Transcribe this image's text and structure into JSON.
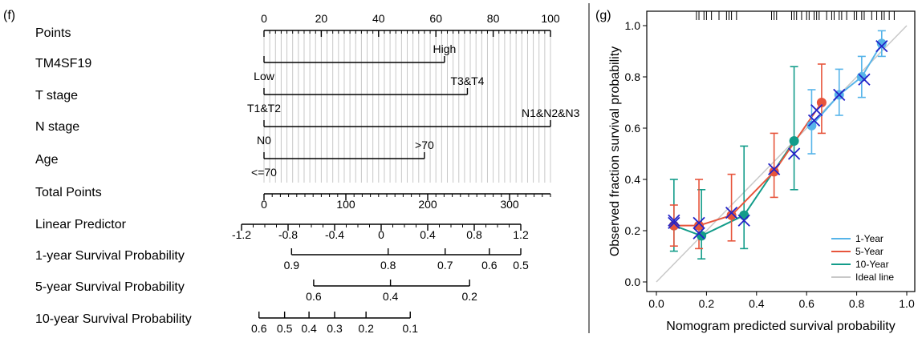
{
  "panel_f_label": "(f)",
  "panel_g_label": "(g)",
  "chart_data": [
    {
      "type": "nomogram",
      "rows": [
        {
          "label": "Points",
          "kind": "scale",
          "min": 0,
          "max": 100,
          "major": [
            0,
            20,
            40,
            60,
            80,
            100
          ]
        },
        {
          "label": "TM4SF19",
          "kind": "factor",
          "levels": [
            {
              "text": "Low",
              "points": 0
            },
            {
              "text": "High",
              "points": 63
            }
          ]
        },
        {
          "label": "T stage",
          "kind": "factor",
          "levels": [
            {
              "text": "T1&T2",
              "points": 0
            },
            {
              "text": "T3&T4",
              "points": 71
            }
          ]
        },
        {
          "label": "N stage",
          "kind": "factor",
          "levels": [
            {
              "text": "N0",
              "points": 0
            },
            {
              "text": "N1&N2&N3",
              "points": 100
            }
          ]
        },
        {
          "label": "Age",
          "kind": "factor",
          "levels": [
            {
              "text": "<=70",
              "points": 0
            },
            {
              "text": ">70",
              "points": 56
            }
          ]
        },
        {
          "label": "Total Points",
          "kind": "scale",
          "min": 0,
          "max": 350,
          "major": [
            0,
            100,
            200,
            300
          ]
        },
        {
          "label": "Linear Predictor",
          "kind": "scale",
          "min": -1.2,
          "max": 1.2,
          "major": [
            -1.2,
            -0.8,
            -0.4,
            0,
            0.4,
            0.8,
            1.2
          ],
          "major_text": [
            "-1.2",
            "-0.8",
            "-0.4",
            "0",
            "0.4",
            "0.8",
            "1.2"
          ]
        },
        {
          "label": "1-year Survival Probability",
          "kind": "prob",
          "ticks": [
            {
              "text": "0.9",
              "lp": -0.77
            },
            {
              "text": "0.8",
              "lp": 0.06
            },
            {
              "text": "0.7",
              "lp": 0.55
            },
            {
              "text": "0.6",
              "lp": 0.93
            },
            {
              "text": "0.5",
              "lp": 1.2
            }
          ]
        },
        {
          "label": "5-year Survival Probability",
          "kind": "prob",
          "ticks": [
            {
              "text": "0.6",
              "lp": -0.58
            },
            {
              "text": "0.4",
              "lp": 0.08
            },
            {
              "text": "0.2",
              "lp": 0.76
            }
          ]
        },
        {
          "label": "10-year Survival Probability",
          "kind": "prob",
          "ticks": [
            {
              "text": "0.6",
              "lp": -1.05
            },
            {
              "text": "0.5",
              "lp": -0.83
            },
            {
              "text": "0.4",
              "lp": -0.62
            },
            {
              "text": "0.3",
              "lp": -0.4
            },
            {
              "text": "0.2",
              "lp": -0.13
            },
            {
              "text": "0.1",
              "lp": 0.25
            }
          ]
        }
      ]
    },
    {
      "type": "line",
      "xlabel": "Nomogram predicted survival probability",
      "ylabel": "Observed fraction survival probability",
      "xlim": [
        0,
        1.0
      ],
      "ylim": [
        0,
        1.0
      ],
      "xticks": [
        "0.0",
        "0.2",
        "0.4",
        "0.6",
        "0.8",
        "1.0"
      ],
      "yticks": [
        "0.0",
        "0.2",
        "0.4",
        "0.6",
        "0.8",
        "1.0"
      ],
      "legend_position": "bottom-right",
      "rug": [
        0.16,
        0.17,
        0.19,
        0.2,
        0.22,
        0.25,
        0.28,
        0.29,
        0.3,
        0.32,
        0.46,
        0.47,
        0.48,
        0.54,
        0.55,
        0.56,
        0.58,
        0.6,
        0.61,
        0.63,
        0.64,
        0.65,
        0.68,
        0.7,
        0.71,
        0.73,
        0.74,
        0.76,
        0.79,
        0.8,
        0.82,
        0.83,
        0.86,
        0.88,
        0.9,
        0.91,
        0.93,
        0.95
      ],
      "series": [
        {
          "name": "1-Year",
          "color": "#56B4E9",
          "points": [
            {
              "x": 0.62,
              "y": 0.61,
              "lo": 0.5,
              "hi": 0.75
            },
            {
              "x": 0.73,
              "y": 0.73,
              "lo": 0.65,
              "hi": 0.83
            },
            {
              "x": 0.82,
              "y": 0.8,
              "lo": 0.72,
              "hi": 0.88
            },
            {
              "x": 0.9,
              "y": 0.93,
              "lo": 0.88,
              "hi": 0.98
            }
          ],
          "x_marks": [
            {
              "x": 0.64,
              "y": 0.67
            },
            {
              "x": 0.73,
              "y": 0.73
            },
            {
              "x": 0.83,
              "y": 0.79
            },
            {
              "x": 0.9,
              "y": 0.92
            }
          ]
        },
        {
          "name": "5-Year",
          "color": "#E7553C",
          "points": [
            {
              "x": 0.07,
              "y": 0.22,
              "lo": 0.14,
              "hi": 0.3
            },
            {
              "x": 0.17,
              "y": 0.22,
              "lo": 0.13,
              "hi": 0.4
            },
            {
              "x": 0.3,
              "y": 0.26,
              "lo": 0.16,
              "hi": 0.42
            },
            {
              "x": 0.47,
              "y": 0.43,
              "lo": 0.33,
              "hi": 0.58
            },
            {
              "x": 0.66,
              "y": 0.7,
              "lo": 0.58,
              "hi": 0.85
            }
          ],
          "x_marks": [
            {
              "x": 0.07,
              "y": 0.24
            },
            {
              "x": 0.17,
              "y": 0.23
            },
            {
              "x": 0.3,
              "y": 0.27
            },
            {
              "x": 0.47,
              "y": 0.44
            },
            {
              "x": 0.63,
              "y": 0.63
            }
          ]
        },
        {
          "name": "10-Year",
          "color": "#139C8A",
          "points": [
            {
              "x": 0.07,
              "y": 0.22,
              "lo": 0.12,
              "hi": 0.4
            },
            {
              "x": 0.18,
              "y": 0.18,
              "lo": 0.09,
              "hi": 0.36
            },
            {
              "x": 0.35,
              "y": 0.26,
              "lo": 0.13,
              "hi": 0.53
            },
            {
              "x": 0.55,
              "y": 0.55,
              "lo": 0.36,
              "hi": 0.84
            }
          ],
          "x_marks": [
            {
              "x": 0.07,
              "y": 0.23
            },
            {
              "x": 0.17,
              "y": 0.19
            },
            {
              "x": 0.35,
              "y": 0.24
            },
            {
              "x": 0.55,
              "y": 0.5
            }
          ]
        },
        {
          "name": "Ideal line",
          "color": "#C8C8C8",
          "points": [
            {
              "x": 0,
              "y": 0
            },
            {
              "x": 1,
              "y": 1
            }
          ]
        }
      ]
    }
  ]
}
